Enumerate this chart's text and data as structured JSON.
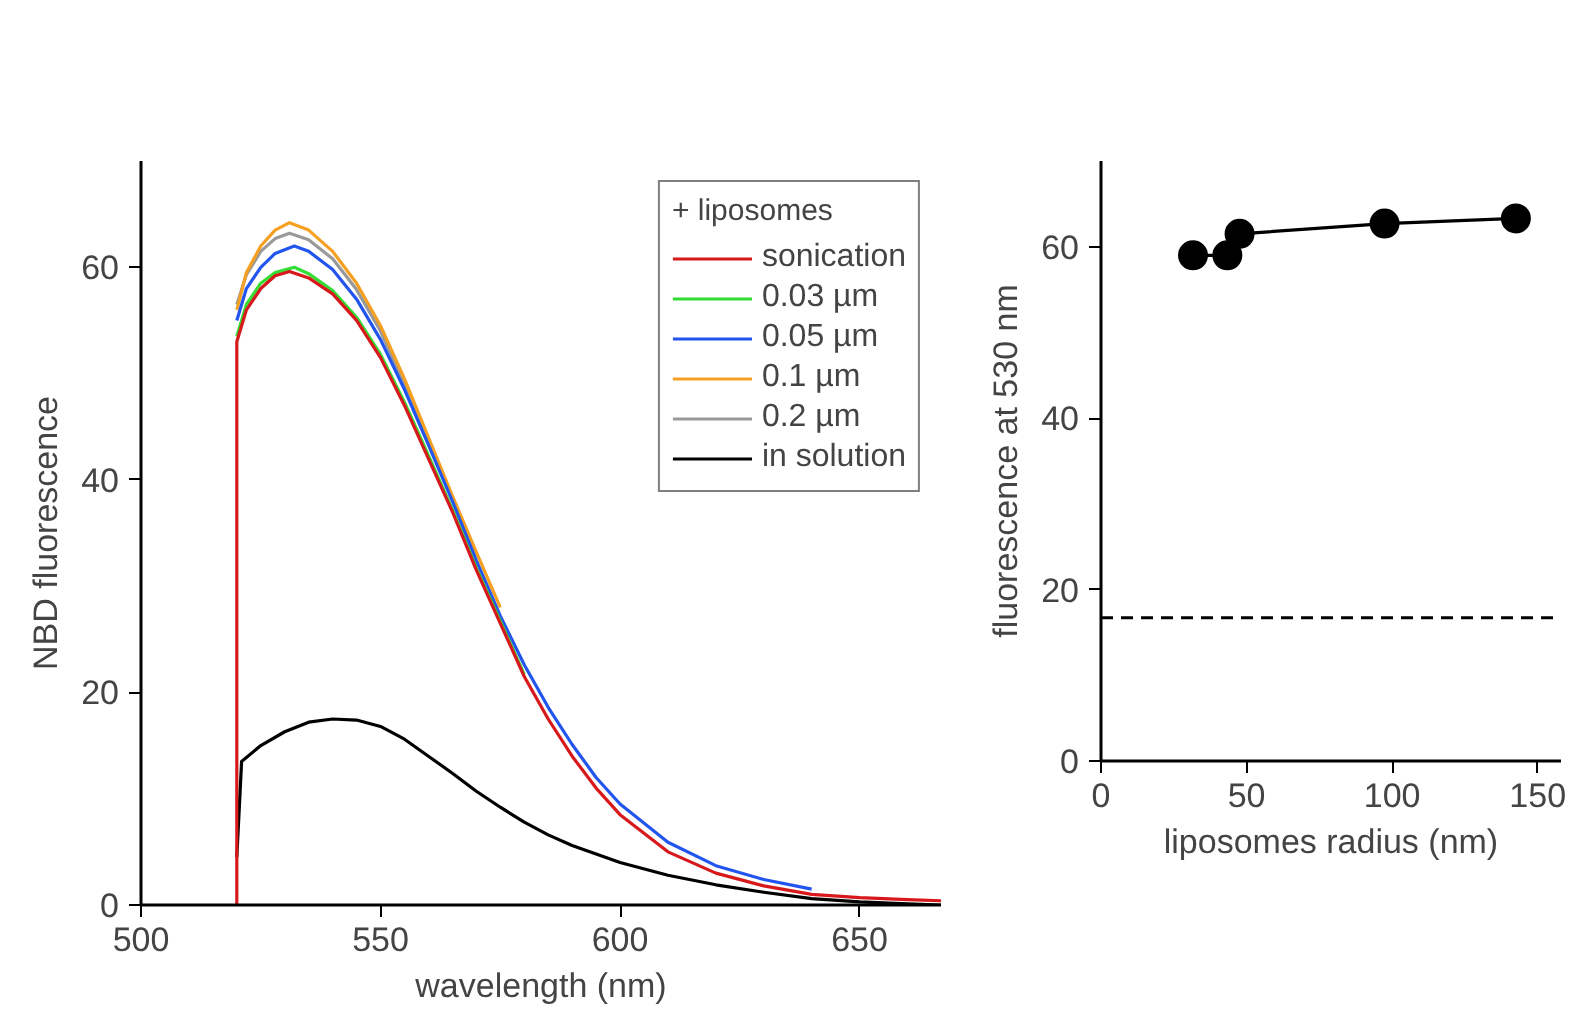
{
  "chart_data": [
    {
      "type": "line",
      "xlabel": "wavelength (nm)",
      "ylabel": "NBD fluorescence",
      "xlim": [
        500,
        667
      ],
      "xticks": [
        500,
        550,
        600,
        650
      ],
      "ylim": [
        0,
        70
      ],
      "yticks": [
        0,
        20,
        40,
        60
      ],
      "grid": false,
      "legend": "top right",
      "legend_title": "+ liposomes",
      "line_style": "solid",
      "marker": "none",
      "series": [
        {
          "name": "sonication",
          "color": "#d7191c",
          "x": [
            520,
            520,
            522,
            525,
            528,
            531,
            535,
            540,
            545,
            550,
            555,
            560,
            565,
            570,
            575,
            580,
            585,
            590,
            595,
            600,
            610,
            620,
            630,
            640,
            650,
            660,
            667
          ],
          "values": [
            0,
            53,
            56,
            58,
            59.2,
            59.6,
            59,
            57.5,
            55,
            51.5,
            47,
            42,
            37,
            31.5,
            26.5,
            21.5,
            17.5,
            14,
            11,
            8.5,
            5,
            3,
            1.8,
            1,
            0.7,
            0.5,
            0.4
          ]
        },
        {
          "name": "0.03 µm",
          "color": "#33dd33",
          "x": [
            520,
            522,
            525,
            528,
            532,
            535,
            540,
            545,
            550,
            555,
            560,
            565,
            570,
            575,
            580
          ],
          "values": [
            53.5,
            56.5,
            58.5,
            59.5,
            60,
            59.4,
            57.8,
            55.3,
            51.8,
            47.3,
            42.3,
            37.2,
            31.7,
            26.7,
            21.7
          ]
        },
        {
          "name": "0.05 µm",
          "color": "#2255ee",
          "x": [
            520,
            522,
            525,
            528,
            532,
            535,
            540,
            545,
            550,
            555,
            560,
            565,
            570,
            575,
            580,
            585,
            590,
            595,
            600,
            610,
            620,
            630,
            640
          ],
          "values": [
            55,
            58,
            60,
            61.3,
            62,
            61.5,
            59.8,
            57,
            53.2,
            48.5,
            43.3,
            38,
            32.4,
            27.2,
            22.6,
            18.6,
            15.1,
            12,
            9.5,
            5.9,
            3.7,
            2.4,
            1.5
          ]
        },
        {
          "name": "0.1 µm",
          "color": "#f5a020",
          "x": [
            520,
            522,
            525,
            528,
            531,
            535,
            540,
            545,
            550,
            555,
            560,
            565,
            570,
            575
          ],
          "values": [
            56,
            59.5,
            62,
            63.5,
            64.2,
            63.5,
            61.5,
            58.5,
            54.5,
            49.5,
            44,
            38.5,
            33.2,
            28
          ]
        },
        {
          "name": "0.2 µm",
          "color": "#999999",
          "x": [
            520,
            522,
            525,
            528,
            531,
            535,
            540,
            545,
            550,
            555,
            560,
            565,
            570
          ],
          "values": [
            56.5,
            59.3,
            61.5,
            62.7,
            63.2,
            62.6,
            60.8,
            57.9,
            54,
            49,
            43.7,
            38.2,
            32.8
          ]
        },
        {
          "name": "in solution",
          "color": "#000000",
          "x": [
            520,
            521,
            525,
            530,
            535,
            540,
            545,
            550,
            555,
            560,
            565,
            570,
            575,
            580,
            585,
            590,
            600,
            610,
            620,
            630,
            640,
            650,
            660,
            667
          ],
          "values": [
            4.5,
            13.5,
            15,
            16.3,
            17.2,
            17.5,
            17.4,
            16.8,
            15.6,
            14,
            12.4,
            10.7,
            9.2,
            7.8,
            6.6,
            5.6,
            4,
            2.8,
            1.9,
            1.2,
            0.6,
            0.3,
            0.1,
            0
          ]
        }
      ]
    },
    {
      "type": "line",
      "xlabel": "liposomes radius (nm)",
      "ylabel": "fluorescence at 530 nm",
      "xlim": [
        0,
        158
      ],
      "xticks": [
        0,
        50,
        100,
        150
      ],
      "ylim": [
        0,
        70
      ],
      "yticks": [
        0,
        20,
        40,
        60
      ],
      "grid": false,
      "legend": false,
      "marker": "circle",
      "line_style": "solid",
      "series": [
        {
          "color": "#000000",
          "x": [
            31.6,
            43.4,
            47.6,
            97.4,
            142.5
          ],
          "values": [
            59,
            59,
            61.5,
            62.7,
            63.3
          ]
        }
      ],
      "ref_lines": [
        {
          "axis": "y",
          "value": 16.7,
          "color": "#000000",
          "line_style": "dashed"
        }
      ]
    }
  ]
}
